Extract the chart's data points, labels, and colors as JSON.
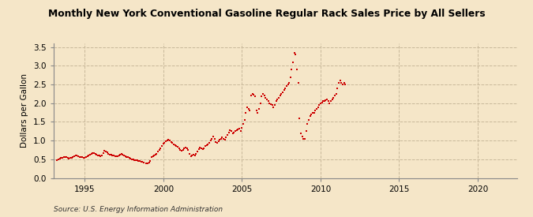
{
  "title": "Monthly New York Conventional Gasoline Regular Rack Sales Price by All Sellers",
  "ylabel": "Dollars per Gallon",
  "source": "Source: U.S. Energy Information Administration",
  "background_color": "#F5E6C8",
  "plot_bg_color": "#F5E6C8",
  "marker_color": "#CC0000",
  "grid_color": "#C8B89A",
  "spine_color": "#888888",
  "xlim": [
    1993.0,
    2022.5
  ],
  "ylim": [
    0.0,
    3.6
  ],
  "xticks": [
    1995,
    2000,
    2005,
    2010,
    2015,
    2020
  ],
  "yticks": [
    0.0,
    0.5,
    1.0,
    1.5,
    2.0,
    2.5,
    3.0,
    3.5
  ],
  "data": [
    [
      1993.25,
      0.47
    ],
    [
      1993.33,
      0.5
    ],
    [
      1993.42,
      0.52
    ],
    [
      1993.5,
      0.53
    ],
    [
      1993.58,
      0.54
    ],
    [
      1993.67,
      0.56
    ],
    [
      1993.75,
      0.57
    ],
    [
      1993.83,
      0.55
    ],
    [
      1993.92,
      0.54
    ],
    [
      1994.0,
      0.52
    ],
    [
      1994.08,
      0.53
    ],
    [
      1994.17,
      0.54
    ],
    [
      1994.25,
      0.55
    ],
    [
      1994.33,
      0.58
    ],
    [
      1994.42,
      0.6
    ],
    [
      1994.5,
      0.61
    ],
    [
      1994.58,
      0.59
    ],
    [
      1994.67,
      0.57
    ],
    [
      1994.75,
      0.56
    ],
    [
      1994.83,
      0.55
    ],
    [
      1994.92,
      0.54
    ],
    [
      1995.0,
      0.53
    ],
    [
      1995.08,
      0.55
    ],
    [
      1995.17,
      0.58
    ],
    [
      1995.25,
      0.6
    ],
    [
      1995.33,
      0.62
    ],
    [
      1995.42,
      0.65
    ],
    [
      1995.5,
      0.67
    ],
    [
      1995.58,
      0.66
    ],
    [
      1995.67,
      0.64
    ],
    [
      1995.75,
      0.63
    ],
    [
      1995.83,
      0.61
    ],
    [
      1995.92,
      0.6
    ],
    [
      1996.0,
      0.59
    ],
    [
      1996.08,
      0.61
    ],
    [
      1996.17,
      0.67
    ],
    [
      1996.25,
      0.72
    ],
    [
      1996.33,
      0.7
    ],
    [
      1996.42,
      0.68
    ],
    [
      1996.5,
      0.65
    ],
    [
      1996.58,
      0.63
    ],
    [
      1996.67,
      0.62
    ],
    [
      1996.75,
      0.61
    ],
    [
      1996.83,
      0.6
    ],
    [
      1996.92,
      0.59
    ],
    [
      1997.0,
      0.58
    ],
    [
      1997.08,
      0.59
    ],
    [
      1997.17,
      0.6
    ],
    [
      1997.25,
      0.62
    ],
    [
      1997.33,
      0.64
    ],
    [
      1997.42,
      0.63
    ],
    [
      1997.5,
      0.61
    ],
    [
      1997.58,
      0.59
    ],
    [
      1997.67,
      0.57
    ],
    [
      1997.75,
      0.56
    ],
    [
      1997.83,
      0.54
    ],
    [
      1997.92,
      0.52
    ],
    [
      1998.0,
      0.5
    ],
    [
      1998.08,
      0.49
    ],
    [
      1998.17,
      0.48
    ],
    [
      1998.25,
      0.48
    ],
    [
      1998.33,
      0.47
    ],
    [
      1998.42,
      0.46
    ],
    [
      1998.5,
      0.45
    ],
    [
      1998.58,
      0.44
    ],
    [
      1998.67,
      0.43
    ],
    [
      1998.75,
      0.42
    ],
    [
      1998.92,
      0.4
    ],
    [
      1999.0,
      0.39
    ],
    [
      1999.08,
      0.41
    ],
    [
      1999.17,
      0.46
    ],
    [
      1999.25,
      0.55
    ],
    [
      1999.33,
      0.58
    ],
    [
      1999.42,
      0.6
    ],
    [
      1999.5,
      0.63
    ],
    [
      1999.58,
      0.65
    ],
    [
      1999.67,
      0.7
    ],
    [
      1999.75,
      0.75
    ],
    [
      1999.83,
      0.8
    ],
    [
      1999.92,
      0.85
    ],
    [
      2000.0,
      0.92
    ],
    [
      2000.08,
      0.95
    ],
    [
      2000.17,
      0.98
    ],
    [
      2000.25,
      1.0
    ],
    [
      2000.33,
      1.02
    ],
    [
      2000.42,
      1.0
    ],
    [
      2000.5,
      0.97
    ],
    [
      2000.58,
      0.93
    ],
    [
      2000.67,
      0.9
    ],
    [
      2000.75,
      0.88
    ],
    [
      2000.83,
      0.86
    ],
    [
      2000.92,
      0.84
    ],
    [
      2001.0,
      0.8
    ],
    [
      2001.08,
      0.75
    ],
    [
      2001.17,
      0.72
    ],
    [
      2001.25,
      0.75
    ],
    [
      2001.33,
      0.8
    ],
    [
      2001.42,
      0.82
    ],
    [
      2001.5,
      0.8
    ],
    [
      2001.58,
      0.75
    ],
    [
      2001.67,
      0.65
    ],
    [
      2001.75,
      0.58
    ],
    [
      2001.83,
      0.6
    ],
    [
      2001.92,
      0.62
    ],
    [
      2002.0,
      0.6
    ],
    [
      2002.08,
      0.64
    ],
    [
      2002.17,
      0.7
    ],
    [
      2002.25,
      0.78
    ],
    [
      2002.33,
      0.82
    ],
    [
      2002.42,
      0.8
    ],
    [
      2002.5,
      0.78
    ],
    [
      2002.58,
      0.8
    ],
    [
      2002.67,
      0.85
    ],
    [
      2002.75,
      0.88
    ],
    [
      2002.83,
      0.9
    ],
    [
      2002.92,
      0.95
    ],
    [
      2003.0,
      1.0
    ],
    [
      2003.08,
      1.05
    ],
    [
      2003.17,
      1.1
    ],
    [
      2003.25,
      1.05
    ],
    [
      2003.33,
      0.97
    ],
    [
      2003.42,
      0.95
    ],
    [
      2003.5,
      0.98
    ],
    [
      2003.58,
      1.02
    ],
    [
      2003.67,
      1.05
    ],
    [
      2003.75,
      1.08
    ],
    [
      2003.83,
      1.05
    ],
    [
      2003.92,
      1.03
    ],
    [
      2004.0,
      1.08
    ],
    [
      2004.08,
      1.15
    ],
    [
      2004.17,
      1.22
    ],
    [
      2004.25,
      1.28
    ],
    [
      2004.33,
      1.25
    ],
    [
      2004.42,
      1.2
    ],
    [
      2004.5,
      1.22
    ],
    [
      2004.58,
      1.25
    ],
    [
      2004.67,
      1.28
    ],
    [
      2004.75,
      1.3
    ],
    [
      2004.83,
      1.32
    ],
    [
      2004.92,
      1.25
    ],
    [
      2005.0,
      1.35
    ],
    [
      2005.08,
      1.45
    ],
    [
      2005.17,
      1.55
    ],
    [
      2005.25,
      1.75
    ],
    [
      2005.33,
      1.9
    ],
    [
      2005.42,
      1.85
    ],
    [
      2005.5,
      1.8
    ],
    [
      2005.58,
      2.2
    ],
    [
      2005.67,
      2.25
    ],
    [
      2005.75,
      2.22
    ],
    [
      2005.83,
      2.18
    ],
    [
      2005.92,
      1.8
    ],
    [
      2006.0,
      1.75
    ],
    [
      2006.08,
      1.85
    ],
    [
      2006.17,
      2.0
    ],
    [
      2006.25,
      2.18
    ],
    [
      2006.33,
      2.25
    ],
    [
      2006.42,
      2.2
    ],
    [
      2006.5,
      2.15
    ],
    [
      2006.58,
      2.1
    ],
    [
      2006.67,
      2.05
    ],
    [
      2006.75,
      2.0
    ],
    [
      2006.83,
      1.98
    ],
    [
      2006.92,
      1.95
    ],
    [
      2007.0,
      1.9
    ],
    [
      2007.08,
      1.95
    ],
    [
      2007.17,
      2.05
    ],
    [
      2007.25,
      2.1
    ],
    [
      2007.33,
      2.15
    ],
    [
      2007.42,
      2.2
    ],
    [
      2007.5,
      2.25
    ],
    [
      2007.58,
      2.3
    ],
    [
      2007.67,
      2.35
    ],
    [
      2007.75,
      2.4
    ],
    [
      2007.83,
      2.45
    ],
    [
      2007.92,
      2.5
    ],
    [
      2008.0,
      2.55
    ],
    [
      2008.08,
      2.7
    ],
    [
      2008.17,
      2.9
    ],
    [
      2008.25,
      3.1
    ],
    [
      2008.33,
      3.35
    ],
    [
      2008.42,
      3.3
    ],
    [
      2008.5,
      2.9
    ],
    [
      2008.58,
      2.55
    ],
    [
      2008.67,
      1.6
    ],
    [
      2008.75,
      1.2
    ],
    [
      2008.83,
      1.1
    ],
    [
      2008.92,
      1.05
    ],
    [
      2009.0,
      1.05
    ],
    [
      2009.08,
      1.25
    ],
    [
      2009.17,
      1.45
    ],
    [
      2009.25,
      1.55
    ],
    [
      2009.33,
      1.65
    ],
    [
      2009.42,
      1.7
    ],
    [
      2009.5,
      1.75
    ],
    [
      2009.58,
      1.75
    ],
    [
      2009.67,
      1.8
    ],
    [
      2009.75,
      1.85
    ],
    [
      2009.83,
      1.9
    ],
    [
      2009.92,
      1.95
    ],
    [
      2010.0,
      2.0
    ],
    [
      2010.08,
      2.02
    ],
    [
      2010.17,
      2.05
    ],
    [
      2010.25,
      2.05
    ],
    [
      2010.33,
      2.08
    ],
    [
      2010.42,
      2.1
    ],
    [
      2010.5,
      2.05
    ],
    [
      2010.58,
      2.0
    ],
    [
      2010.67,
      2.05
    ],
    [
      2010.75,
      2.1
    ],
    [
      2010.83,
      2.15
    ],
    [
      2010.92,
      2.2
    ],
    [
      2011.0,
      2.25
    ],
    [
      2011.08,
      2.4
    ],
    [
      2011.17,
      2.55
    ],
    [
      2011.25,
      2.6
    ],
    [
      2011.33,
      2.55
    ],
    [
      2011.42,
      2.5
    ],
    [
      2011.5,
      2.55
    ],
    [
      2011.58,
      2.5
    ]
  ]
}
